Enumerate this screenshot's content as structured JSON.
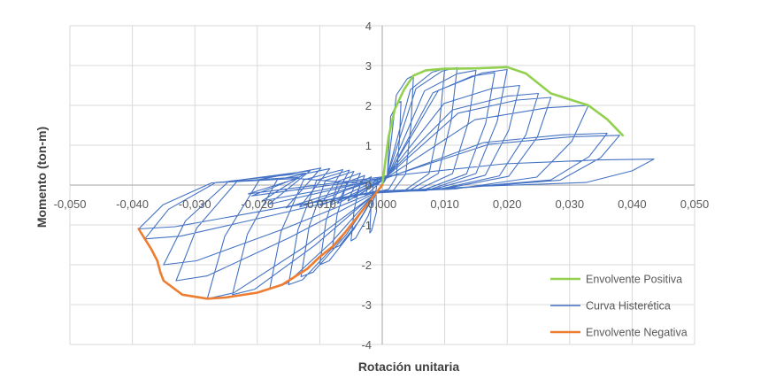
{
  "chart_data": {
    "type": "line",
    "title": "",
    "xlabel": "Rotación unitaria",
    "ylabel": "Momento (ton-m)",
    "xlim": [
      -0.05,
      0.05
    ],
    "ylim": [
      -4,
      4
    ],
    "x_ticks": [
      -0.05,
      -0.04,
      -0.03,
      -0.02,
      -0.01,
      0.0,
      0.01,
      0.02,
      0.03,
      0.04,
      0.05
    ],
    "x_tick_labels": [
      "-0,050",
      "-0,040",
      "-0,030",
      "-0,020",
      "-0,010",
      "0,000",
      "0,010",
      "0,020",
      "0,030",
      "0,040",
      "0,050"
    ],
    "y_ticks": [
      -4,
      -3,
      -2,
      -1,
      0,
      1,
      2,
      3,
      4
    ],
    "y_tick_labels": [
      "-4",
      "-3",
      "-2",
      "-1",
      "0",
      "1",
      "2",
      "3",
      "4"
    ],
    "grid": true,
    "legend_position": "bottom-right",
    "series": [
      {
        "name": "Envolvente Positiva",
        "color": "#92d050",
        "x": [
          0.0,
          0.001,
          0.002,
          0.0035,
          0.005,
          0.007,
          0.01,
          0.015,
          0.02,
          0.023,
          0.027,
          0.03,
          0.033,
          0.036,
          0.0385
        ],
        "y": [
          0.0,
          1.2,
          1.9,
          2.4,
          2.75,
          2.88,
          2.92,
          2.93,
          2.96,
          2.8,
          2.3,
          2.15,
          2.0,
          1.65,
          1.25
        ]
      },
      {
        "name": "Curva Histerética",
        "color": "#4472c4",
        "loop_peaks_positive": [
          [
            0.003,
            2.1
          ],
          [
            0.005,
            2.75
          ],
          [
            0.01,
            2.92
          ],
          [
            0.012,
            2.95
          ],
          [
            0.015,
            2.88
          ],
          [
            0.018,
            2.82
          ],
          [
            0.02,
            2.9
          ],
          [
            0.022,
            2.5
          ],
          [
            0.025,
            2.3
          ],
          [
            0.027,
            2.2
          ],
          [
            0.033,
            2.0
          ],
          [
            0.036,
            1.3
          ],
          [
            0.038,
            1.25
          ],
          [
            0.0435,
            0.65
          ]
        ],
        "loop_peaks_negative": [
          [
            -0.002,
            -1.2
          ],
          [
            -0.005,
            -1.4
          ],
          [
            -0.008,
            -1.6
          ],
          [
            -0.01,
            -2.0
          ],
          [
            -0.013,
            -2.3
          ],
          [
            -0.015,
            -2.5
          ],
          [
            -0.018,
            -2.6
          ],
          [
            -0.024,
            -2.75
          ],
          [
            -0.028,
            -2.85
          ],
          [
            -0.033,
            -2.4
          ],
          [
            -0.035,
            -2.0
          ],
          [
            -0.038,
            -1.35
          ],
          [
            -0.039,
            -1.1
          ]
        ]
      },
      {
        "name": "Envolvente Negativa",
        "color": "#ed7d31",
        "x": [
          0.0,
          -0.002,
          -0.004,
          -0.006,
          -0.008,
          -0.01,
          -0.012,
          -0.014,
          -0.016,
          -0.02,
          -0.025,
          -0.028,
          -0.032,
          -0.035,
          -0.0355,
          -0.036,
          -0.037,
          -0.038,
          -0.039
        ],
        "y": [
          0.0,
          -0.4,
          -0.8,
          -1.2,
          -1.55,
          -1.8,
          -2.1,
          -2.3,
          -2.5,
          -2.7,
          -2.82,
          -2.85,
          -2.75,
          -2.4,
          -2.2,
          -1.9,
          -1.6,
          -1.35,
          -1.1
        ]
      }
    ]
  }
}
